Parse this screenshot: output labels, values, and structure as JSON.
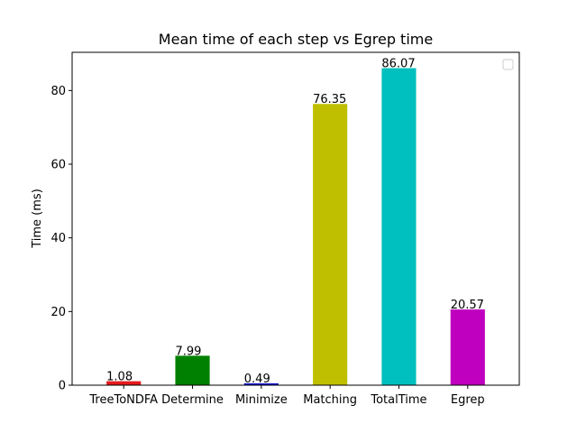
{
  "chart_data": {
    "type": "bar",
    "title": "Mean time of each step vs Egrep time",
    "xlabel": "",
    "ylabel": "Time (ms)",
    "categories": [
      "TreeToNDFA",
      "Determine",
      "Minimize",
      "Matching",
      "TotalTime",
      "Egrep"
    ],
    "values": [
      1.08,
      7.99,
      0.49,
      76.35,
      86.07,
      20.57
    ],
    "value_labels": [
      "1.08",
      "7.99",
      "0.49",
      "76.35",
      "86.07",
      "20.57"
    ],
    "colors": [
      "#e41a1c",
      "#008000",
      "#0000cc",
      "#bfbf00",
      "#00bfbf",
      "#bf00bf"
    ],
    "ylim": [
      0,
      90.37
    ],
    "yticks": [
      0,
      20,
      40,
      60,
      80
    ],
    "ytick_labels": [
      "0",
      "20",
      "40",
      "60",
      "80"
    ],
    "grid": false,
    "legend": {
      "placement": "top-right",
      "entries": []
    }
  }
}
